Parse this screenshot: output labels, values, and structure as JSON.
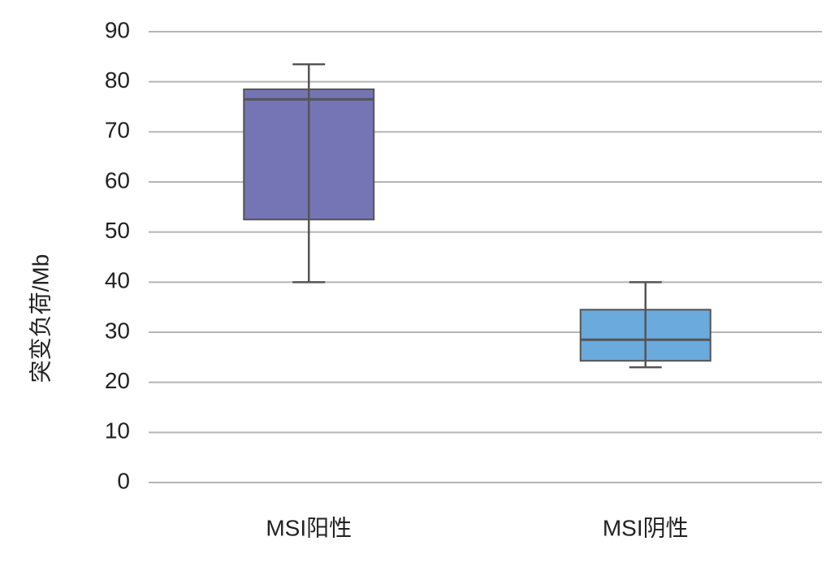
{
  "chart_data": {
    "type": "box",
    "y_label": "突变负荷/Mb",
    "categories": [
      "MSI阳性",
      "MSI阴性"
    ],
    "boxes": [
      {
        "min": 40,
        "q1": 52.5,
        "median": 76.5,
        "q3": 78.5,
        "max": 83.5,
        "color": "#7574b5"
      },
      {
        "min": 23,
        "q1": 24.3,
        "median": 28.5,
        "q3": 34.5,
        "max": 40,
        "color": "#6aaadc"
      }
    ],
    "ylim": [
      0,
      90
    ],
    "yticks": [
      0,
      10,
      20,
      30,
      40,
      50,
      60,
      70,
      80,
      90
    ],
    "grid": true
  }
}
